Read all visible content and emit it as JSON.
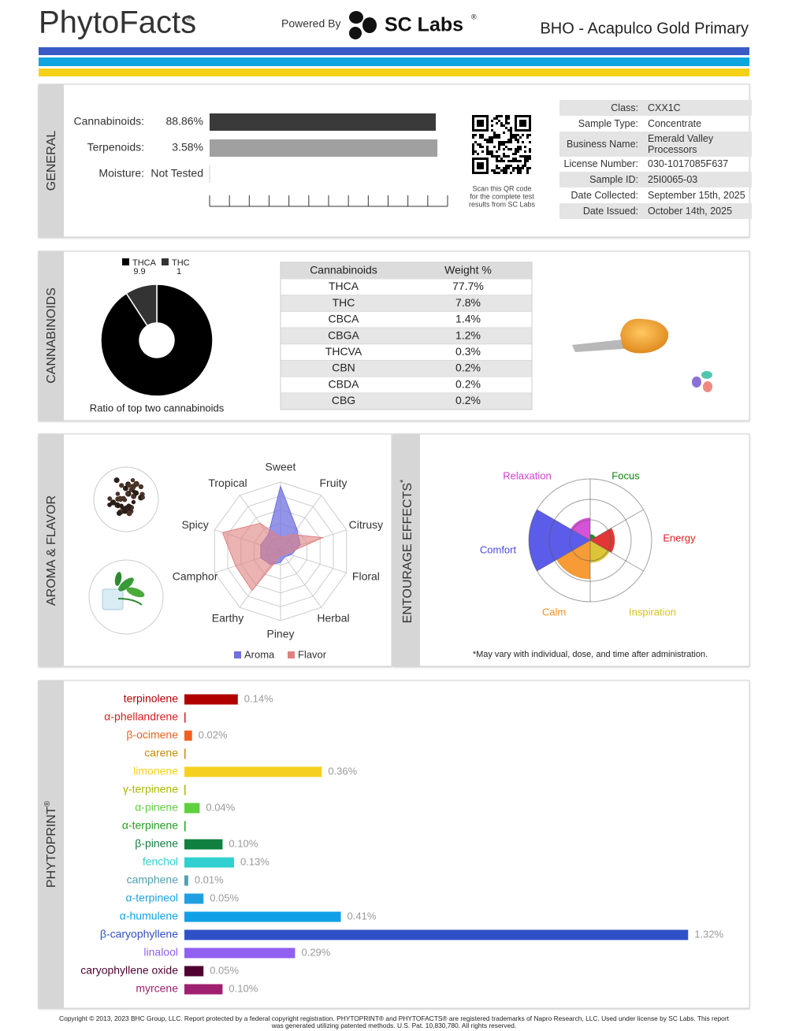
{
  "header": {
    "brand": "PhytoFacts",
    "brand_mark": "®",
    "powered_by": "Powered By",
    "lab": "SC Labs",
    "lab_mark": "®",
    "product": "BHO - Acapulco Gold Primary"
  },
  "general": {
    "title": "GENERAL",
    "potency": [
      {
        "label": "Cannabinoids:",
        "value": 88.86,
        "value_label": "88.86%",
        "xlim": [
          0,
          100
        ],
        "color": "#3a3a3a"
      },
      {
        "label": "Terpenoids:",
        "value": 3.58,
        "value_label": "3.58%",
        "xlim": [
          0,
          4
        ],
        "color": "#a0a0a0"
      },
      {
        "label": "Moisture:",
        "status": "Not Tested"
      }
    ],
    "qr_caption": [
      "Scan this QR code",
      "for the complete test",
      "results from SC Labs"
    ],
    "info": [
      [
        "Class:",
        "CXX1C"
      ],
      [
        "Sample Type:",
        "Concentrate"
      ],
      [
        "Business Name:",
        "Emerald Valley Processors"
      ],
      [
        "License Number:",
        "030-1017085F637"
      ],
      [
        "Sample ID:",
        "25I0065-03"
      ],
      [
        "Date Collected:",
        "September 15th, 2025"
      ],
      [
        "Date Issued:",
        "October 14th, 2025"
      ]
    ]
  },
  "cannabinoids": {
    "title": "CANNABINOIDS",
    "ratio_chart": {
      "type": "pie",
      "series": [
        {
          "name": "THCA",
          "value": 9.9,
          "color": "#000000"
        },
        {
          "name": "THC",
          "value": 1.0,
          "color": "#333333"
        }
      ],
      "caption": "Ratio of top two cannabinoids"
    },
    "table": {
      "columns": [
        "Cannabinoids",
        "Weight %"
      ],
      "rows": [
        [
          "THCA",
          "77.7%"
        ],
        [
          "THC",
          "7.8%"
        ],
        [
          "CBCA",
          "1.4%"
        ],
        [
          "CBGA",
          "1.2%"
        ],
        [
          "THCVA",
          "0.3%"
        ],
        [
          "CBN",
          "0.2%"
        ],
        [
          "CBDA",
          "0.2%"
        ],
        [
          "CBG",
          "0.2%"
        ]
      ]
    }
  },
  "aroma_flavor": {
    "title": "AROMA & FLAVOR",
    "chart": {
      "type": "radar",
      "axes": [
        "Sweet",
        "Fruity",
        "Citrusy",
        "Floral",
        "Herbal",
        "Piney",
        "Earthy",
        "Camphor",
        "Spicy",
        "Tropical"
      ],
      "rlim": [
        0,
        5
      ],
      "rticks": [
        1,
        2,
        3,
        4,
        5
      ],
      "series": [
        {
          "name": "Aroma",
          "color": "#7070e0",
          "values": [
            4.7,
            2,
            1.5,
            0.8,
            0.5,
            0.8,
            1.2,
            1.5,
            1.5,
            1.5
          ]
        },
        {
          "name": "Flavor",
          "color": "#e08080",
          "values": [
            1,
            1.5,
            3.2,
            0.5,
            0.3,
            0.3,
            3.5,
            3.4,
            4.4,
            2.5
          ]
        }
      ]
    }
  },
  "entourage": {
    "title": "ENTOURAGE EFFECTS",
    "title_mark": "*",
    "chart": {
      "type": "polar_area",
      "categories": [
        "Relaxation",
        "Focus",
        "Energy",
        "Inspiration",
        "Calm",
        "Comfort"
      ],
      "colors": [
        "#d040d0",
        "#108010",
        "#e02020",
        "#d8c020",
        "#f59020",
        "#4a4ae8"
      ],
      "values": [
        1.1,
        0.3,
        1.2,
        1.1,
        1.9,
        3
      ],
      "rlim": [
        0,
        3
      ],
      "rticks": [
        1,
        2,
        3
      ]
    },
    "note": "*May vary with individual, dose, and time after administration."
  },
  "phytoprint": {
    "title": "PHYTOPRINT",
    "title_mark": "®",
    "chart": {
      "type": "bar",
      "orientation": "horizontal",
      "categories": [
        "terpinolene",
        "α-phellandrene",
        "β-ocimene",
        "carene",
        "limonene",
        "γ-terpinene",
        "α-pinene",
        "α-terpinene",
        "β-pinene",
        "fenchol",
        "camphene",
        "α-terpineol",
        "α-humulene",
        "β-caryophyllene",
        "linalool",
        "caryophyllene oxide",
        "myrcene"
      ],
      "colors": [
        "#b00000",
        "#d42020",
        "#f06020",
        "#c88a00",
        "#f5d020",
        "#a8b800",
        "#60d040",
        "#20a020",
        "#108040",
        "#30d0d0",
        "#50a0b0",
        "#20a0e0",
        "#10a0e8",
        "#3050c8",
        "#9060f0",
        "#500030",
        "#a02070"
      ],
      "values": [
        0.14,
        0,
        0.02,
        0,
        0.36,
        0,
        0.04,
        0,
        0.1,
        0.13,
        0.01,
        0.05,
        0.41,
        1.32,
        0.29,
        0.05,
        0.1
      ],
      "value_labels": [
        "0.14%",
        null,
        "0.02%",
        null,
        "0.36%",
        null,
        "0.04%",
        null,
        "0.10%",
        "0.13%",
        "0.01%",
        "0.05%",
        "0.41%",
        "1.32%",
        "0.29%",
        "0.05%",
        "0.10%"
      ],
      "xlim": [
        0,
        1.4
      ]
    }
  },
  "footer": [
    "Copyright © 2013, 2023 BHC Group, LLC. Report protected by a federal copyright registration. PHYTOPRINT® and PHYTOFACTS® are registered trademarks of Napro Research, LLC. Used under license by SC Labs. This report",
    "was generated utilizing patented methods. U.S. Pat. 10,830,780. All rights reserved."
  ]
}
